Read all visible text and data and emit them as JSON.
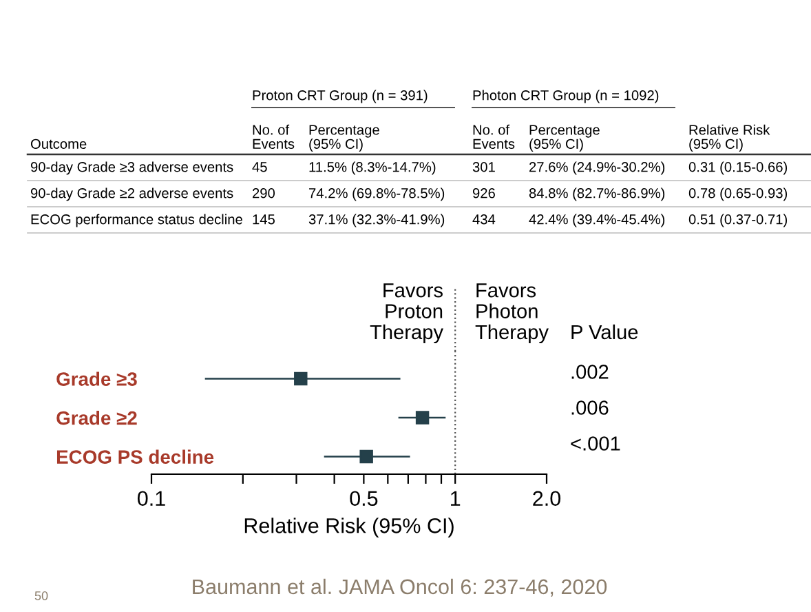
{
  "chart_data": {
    "type": "scatter",
    "orientation": "horizontal",
    "categories": [
      "Grade ≥3",
      "Grade ≥2",
      "ECOG PS decline"
    ],
    "values": [
      0.31,
      0.78,
      0.51
    ],
    "errors": [
      [
        0.15,
        0.66
      ],
      [
        0.65,
        0.93
      ],
      [
        0.37,
        0.71
      ]
    ],
    "color": "#24404a",
    "marker": "square",
    "xlabel": "Relative Risk (95% CI)",
    "log": "x",
    "xlim": [
      0.1,
      2.0
    ],
    "xticks": [
      0.1,
      {
        "value": 0.2,
        "label": null
      },
      {
        "value": 0.3,
        "label": null
      },
      {
        "value": 0.4,
        "label": null
      },
      0.5,
      {
        "value": 0.6,
        "label": null
      },
      {
        "value": 0.7,
        "label": null
      },
      {
        "value": 0.8,
        "label": null
      },
      {
        "value": 0.9,
        "label": null
      },
      1,
      {
        "value": 2,
        "label": "2.0"
      }
    ],
    "ref_lines": [
      {
        "axis": "x",
        "value": 1,
        "label": null,
        "color": "#555555",
        "line_style": "dotted"
      }
    ],
    "grid": false,
    "legend": false,
    "annotations": [
      "Proton CRT Group (n = 391)",
      "Photon CRT Group (n = 1092)",
      "Outcome",
      "No. of\nEvents",
      "Percentage\n(95% CI)",
      "No. of\nEvents",
      "Percentage\n(95% CI)",
      "Relative Risk\n(95% CI)",
      "90-day Grade ≥3 adverse events",
      "45",
      "11.5% (8.3%-14.7%)",
      "301",
      "27.6% (24.9%-30.2%)",
      "0.31 (0.15-0.66)",
      "90-day Grade ≥2 adverse events",
      "290",
      "74.2% (69.8%-78.5%)",
      "926",
      "84.8% (82.7%-86.9%)",
      "0.78 (0.65-0.93)",
      "ECOG performance status decline",
      "145",
      "37.1% (32.3%-41.9%)",
      "434",
      "42.4% (39.4%-45.4%)",
      "0.51 (0.37-0.71)",
      "Favors\nProton\nTherapy",
      "Favors\nPhoton\nTherapy",
      "P Value",
      ".002",
      ".006",
      "<.001",
      "Baumann et al. JAMA Oncol 6: 237-46, 2020",
      "50"
    ]
  }
}
